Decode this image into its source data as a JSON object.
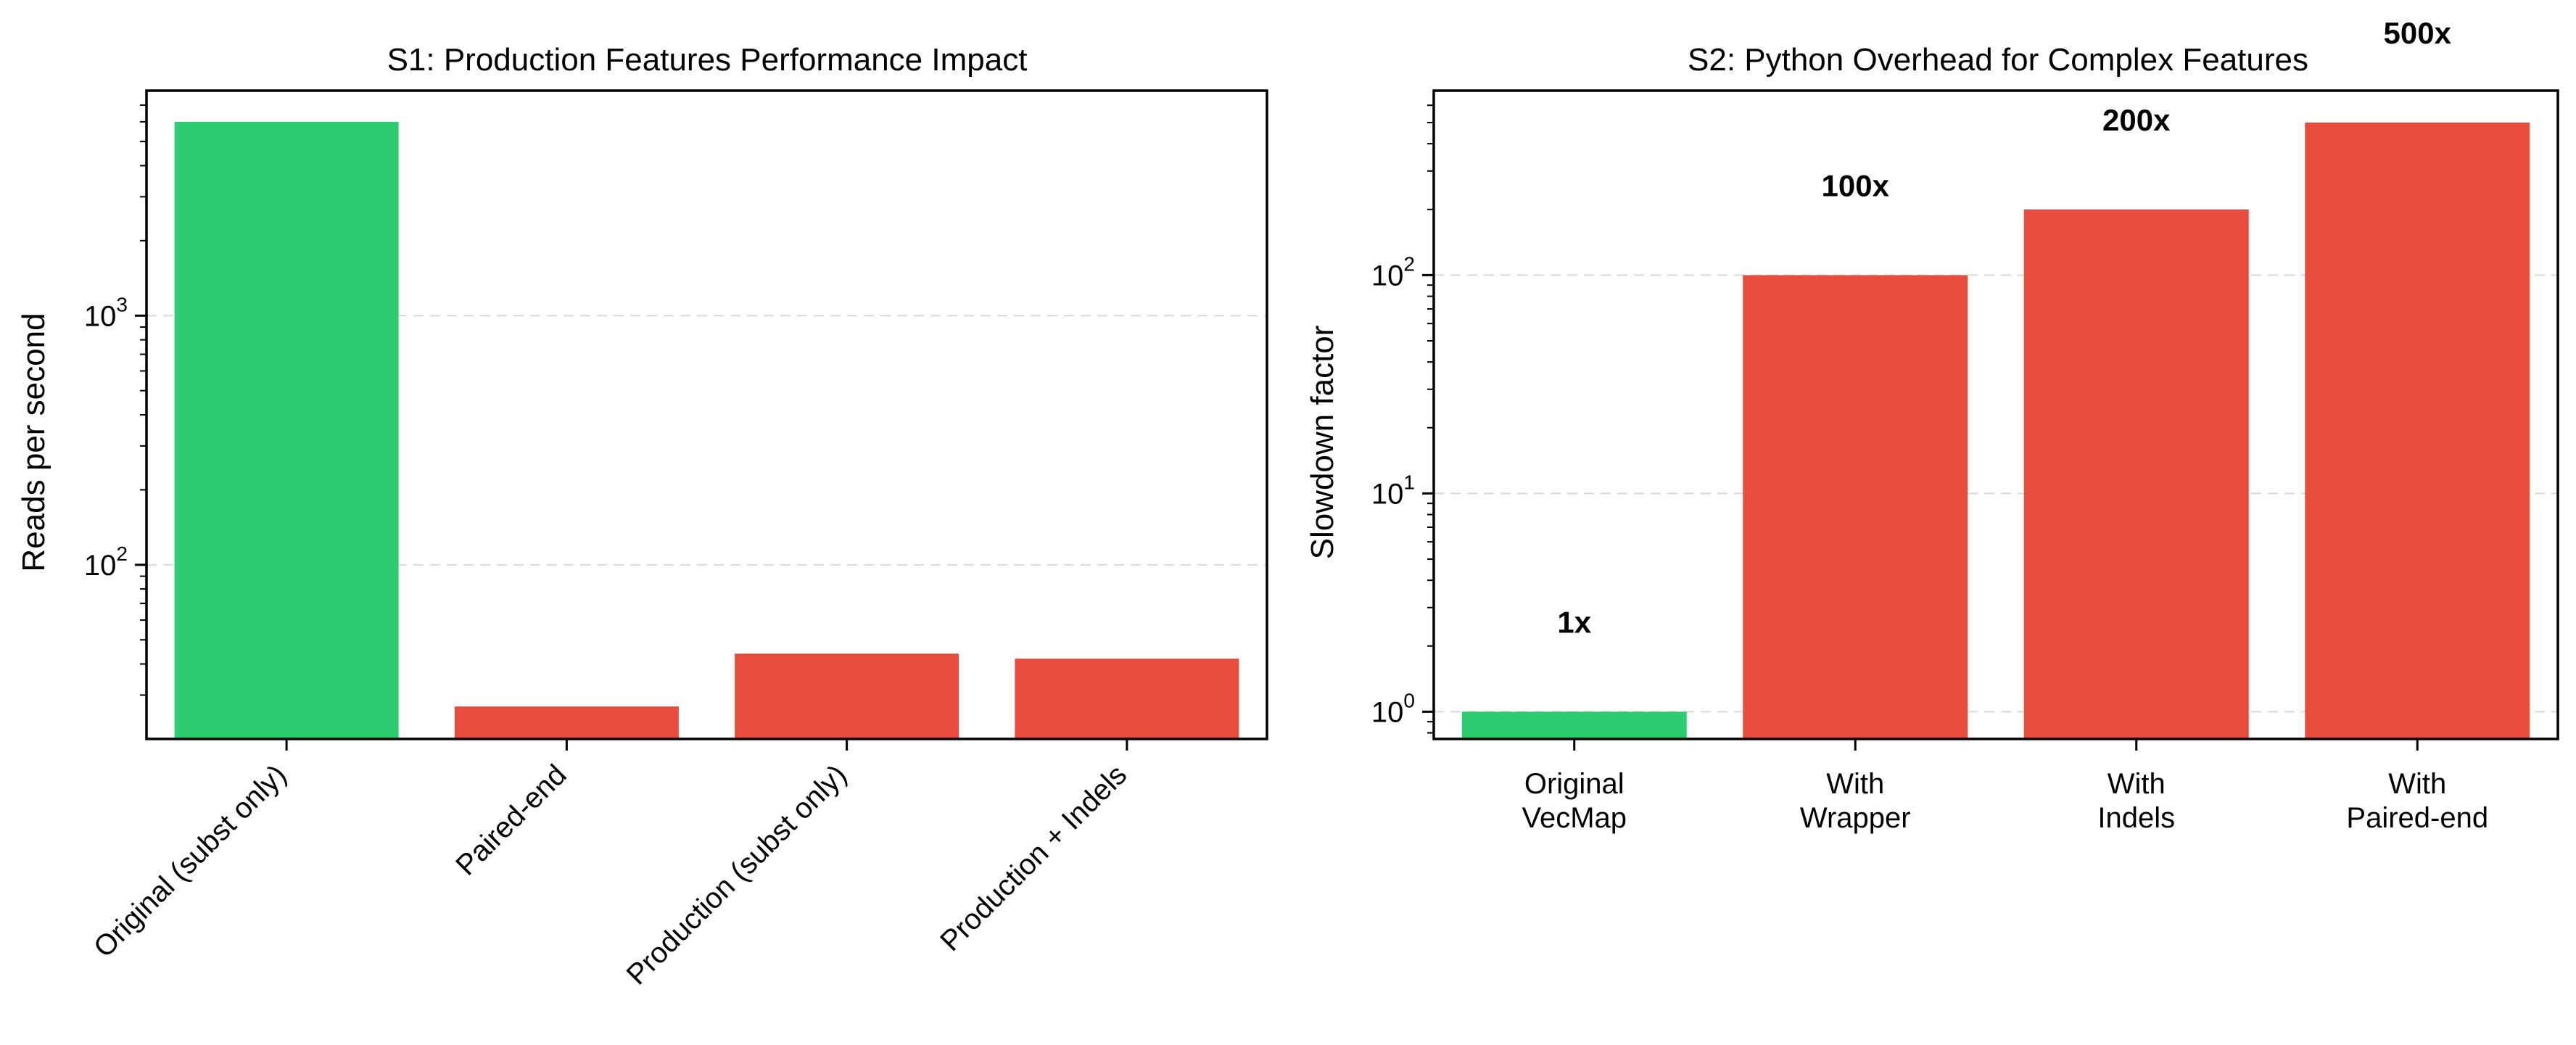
{
  "colors": {
    "baseline": "#2ecc71",
    "slow": "#e74c3c"
  },
  "chart_data": [
    {
      "type": "bar",
      "title": "S1: Production Features Performance Impact",
      "xlabel": "",
      "ylabel": "Reads per second",
      "yscale": "log",
      "ylim": [
        20,
        8000
      ],
      "grid": "y-major dashed",
      "categories": [
        "Original (subst only)",
        "Paired-end",
        "Production (subst only)",
        "Production + Indels"
      ],
      "values": [
        6000,
        27,
        44,
        42
      ],
      "bar_colors": [
        "#2ecc71",
        "#e74c3c",
        "#e74c3c",
        "#e74c3c"
      ],
      "y_ticks": [
        {
          "base": "10",
          "exp": "2",
          "value": 100
        },
        {
          "base": "10",
          "exp": "3",
          "value": 1000
        }
      ]
    },
    {
      "type": "bar",
      "title": "S2: Python Overhead for Complex Features",
      "xlabel": "",
      "ylabel": "Slowdown factor",
      "yscale": "log",
      "ylim": [
        0.75,
        700
      ],
      "grid": "y-major dashed",
      "categories": [
        "Original\nVecMap",
        "With\nWrapper",
        "With\nIndels",
        "With\nPaired-end"
      ],
      "values": [
        1,
        100,
        200,
        500
      ],
      "bar_colors": [
        "#2ecc71",
        "#e74c3c",
        "#e74c3c",
        "#e74c3c"
      ],
      "annotations": [
        "1x",
        "100x",
        "200x",
        "500x"
      ],
      "y_ticks": [
        {
          "base": "10",
          "exp": "0",
          "value": 1
        },
        {
          "base": "10",
          "exp": "1",
          "value": 10
        },
        {
          "base": "10",
          "exp": "2",
          "value": 100
        }
      ]
    }
  ]
}
